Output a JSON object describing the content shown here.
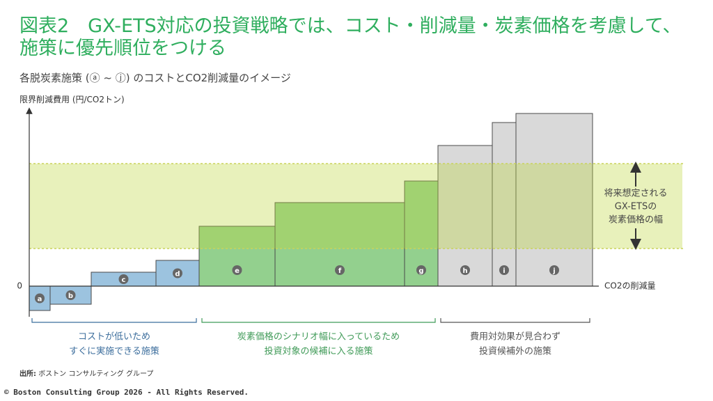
{
  "chart_data": {
    "type": "macc",
    "title": "図表2　GX-ETS対応の投資戦略では、コスト・削減量・炭素価格を考慮して、施策に優先順位をつける",
    "subtitle": "各脱炭素施策 (ⓐ ~ ⓙ) のコストとCO2削減量のイメージ",
    "y_label": "限界削減費用 (円/CO2トン)",
    "x_label": "CO2の削減量",
    "ylim": [
      -44,
      256
    ],
    "yticks": [
      0
    ],
    "xlim": [
      0,
      818
    ],
    "categories": [
      "a",
      "b",
      "c",
      "d",
      "e",
      "f",
      "g",
      "h",
      "i",
      "j"
    ],
    "widths": [
      30,
      59,
      93,
      62,
      109,
      186,
      48,
      78,
      34,
      110
    ],
    "values": [
      -35,
      -26,
      20,
      37,
      86,
      120,
      151,
      202,
      235,
      248
    ],
    "colors": [
      "#9cc3df",
      "#9cc3df",
      "#9cc3df",
      "#9cc3df",
      "#93d08e",
      "#93d08e",
      "#93d08e",
      "#d9d9d9",
      "#d9d9d9",
      "#d9d9d9"
    ],
    "band": {
      "range": [
        54,
        176
      ],
      "label": [
        "将来想定される",
        "GX-ETSの",
        "炭素価格の幅"
      ]
    },
    "groups": [
      {
        "label": [
          "コストが低いため",
          "すぐに実施できる施策"
        ],
        "categories": [
          "a",
          "b",
          "c",
          "d"
        ],
        "color": "#3b6d9c"
      },
      {
        "label": [
          "炭素価格のシナリオ幅に入っているため",
          "投資対象の候補に入る施策"
        ],
        "categories": [
          "e",
          "f",
          "g"
        ],
        "color": "#3f9a57"
      },
      {
        "label": [
          "費用対効果が見合わず",
          "投資候補外の施策"
        ],
        "categories": [
          "h",
          "i",
          "j"
        ],
        "color": "#555555"
      }
    ]
  },
  "source_label": "出所:",
  "source": "ボストン コンサルティング グループ",
  "copyright": "© Boston Consulting Group 2026 - All Rights Reserved."
}
